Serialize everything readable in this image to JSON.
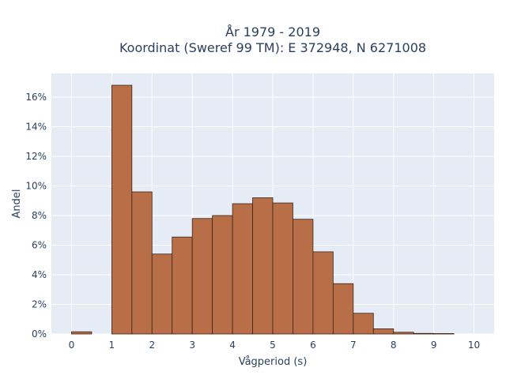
{
  "chart_data": {
    "type": "bar",
    "title_line1": "År 1979 - 2019",
    "title_line2": "Koordinat (Sweref 99 TM): E 372948, N 6271008",
    "xlabel": "Vågperiod (s)",
    "ylabel": "Andel",
    "bin_width": 0.5,
    "bins": [
      {
        "x": 0.0,
        "value": 0.15
      },
      {
        "x": 0.5,
        "value": 0.0
      },
      {
        "x": 1.0,
        "value": 16.8
      },
      {
        "x": 1.5,
        "value": 9.6
      },
      {
        "x": 2.0,
        "value": 5.4
      },
      {
        "x": 2.5,
        "value": 6.55
      },
      {
        "x": 3.0,
        "value": 7.8
      },
      {
        "x": 3.5,
        "value": 8.0
      },
      {
        "x": 4.0,
        "value": 8.8
      },
      {
        "x": 4.5,
        "value": 9.2
      },
      {
        "x": 5.0,
        "value": 8.85
      },
      {
        "x": 5.5,
        "value": 7.75
      },
      {
        "x": 6.0,
        "value": 5.55
      },
      {
        "x": 6.5,
        "value": 3.4
      },
      {
        "x": 7.0,
        "value": 1.4
      },
      {
        "x": 7.5,
        "value": 0.35
      },
      {
        "x": 8.0,
        "value": 0.12
      },
      {
        "x": 8.5,
        "value": 0.04
      },
      {
        "x": 9.0,
        "value": 0.03
      }
    ],
    "xlim": [
      -0.5,
      10.5
    ],
    "ylim": [
      0,
      17.6
    ],
    "x_ticks": [
      "0",
      "1",
      "2",
      "3",
      "4",
      "5",
      "6",
      "7",
      "8",
      "9",
      "10"
    ],
    "y_ticks": [
      "0%",
      "2%",
      "4%",
      "6%",
      "8%",
      "10%",
      "12%",
      "14%",
      "16%"
    ],
    "bar_color": "#b86f48",
    "bar_edge_color": "#3a2416",
    "plot_background": "#e5ecf6",
    "grid": true
  }
}
